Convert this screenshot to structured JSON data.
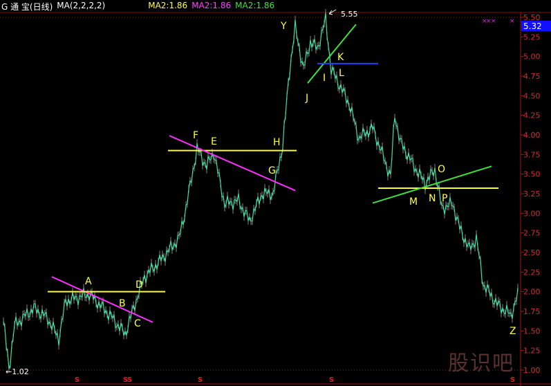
{
  "header": {
    "title": "G 通  宝(日线)",
    "indicator": "MA(2,2,2,2)",
    "ma_labels": [
      {
        "text": "MA2:1.86",
        "color": "#ffff40"
      },
      {
        "text": "MA2:1.86",
        "color": "#ff40ff"
      },
      {
        "text": "MA2:1.86",
        "color": "#40e040"
      }
    ]
  },
  "watermark": "股识吧",
  "chart_data": {
    "type": "line",
    "title": "",
    "ylim": [
      1.0,
      5.5
    ],
    "yticks": [
      "5.50",
      "5.25",
      "5.00",
      "4.75",
      "4.50",
      "4.25",
      "4.00",
      "3.75",
      "3.50",
      "3.25",
      "3.00",
      "2.75",
      "2.50",
      "2.25",
      "2.00",
      "1.75",
      "1.50",
      "1.25",
      "1.00"
    ],
    "current_price": "5.32",
    "high_label": "5.55",
    "low_label": "←1.02",
    "series": [
      {
        "color": "#40e0a0",
        "points": [
          [
            0,
            1.62
          ],
          [
            4,
            1.02
          ],
          [
            8,
            1.57
          ],
          [
            22,
            1.79
          ],
          [
            32,
            1.66
          ],
          [
            40,
            1.4
          ],
          [
            45,
            1.88
          ],
          [
            62,
            1.97
          ],
          [
            77,
            1.7
          ],
          [
            88,
            1.46
          ],
          [
            95,
            1.84
          ],
          [
            102,
            2.19
          ],
          [
            112,
            2.37
          ],
          [
            127,
            2.68
          ],
          [
            132,
            3.07
          ],
          [
            140,
            3.82
          ],
          [
            147,
            3.6
          ],
          [
            152,
            3.78
          ],
          [
            160,
            3.12
          ],
          [
            170,
            3.16
          ],
          [
            178,
            2.9
          ],
          [
            187,
            3.25
          ],
          [
            195,
            3.25
          ],
          [
            202,
            3.87
          ],
          [
            207,
            4.84
          ],
          [
            211,
            5.37
          ],
          [
            217,
            4.84
          ],
          [
            222,
            5.19
          ],
          [
            227,
            5.1
          ],
          [
            233,
            5.47
          ],
          [
            237,
            4.84
          ],
          [
            245,
            4.57
          ],
          [
            250,
            4.4
          ],
          [
            257,
            3.96
          ],
          [
            267,
            4.09
          ],
          [
            280,
            3.47
          ],
          [
            283,
            4.26
          ],
          [
            287,
            3.91
          ],
          [
            297,
            3.6
          ],
          [
            305,
            3.38
          ],
          [
            312,
            3.56
          ],
          [
            317,
            3.07
          ],
          [
            325,
            3.12
          ],
          [
            330,
            2.81
          ],
          [
            337,
            2.54
          ],
          [
            342,
            2.68
          ],
          [
            347,
            2.1
          ],
          [
            357,
            1.84
          ],
          [
            367,
            1.7
          ],
          [
            373,
            2.01
          ]
        ]
      }
    ],
    "trendlines": [
      {
        "color": "#ff30ff",
        "from": [
          35,
          2.19
        ],
        "to": [
          108,
          1.61
        ]
      },
      {
        "color": "#ffff30",
        "from": [
          32,
          2.0
        ],
        "to": [
          117,
          2.0
        ]
      },
      {
        "color": "#ffff30",
        "from": [
          119,
          3.8
        ],
        "to": [
          212,
          3.8
        ]
      },
      {
        "color": "#ff30ff",
        "from": [
          120,
          3.99
        ],
        "to": [
          211,
          3.29
        ]
      },
      {
        "color": "#40e040",
        "from": [
          220,
          4.66
        ],
        "to": [
          255,
          5.41
        ]
      },
      {
        "color": "#2040ff",
        "from": [
          227,
          4.91
        ],
        "to": [
          271,
          4.91
        ]
      },
      {
        "color": "#ffff30",
        "from": [
          271,
          3.32
        ],
        "to": [
          358,
          3.32
        ]
      },
      {
        "color": "#40e040",
        "from": [
          267,
          3.13
        ],
        "to": [
          353,
          3.6
        ]
      }
    ],
    "point_labels": [
      "A",
      "B",
      "C",
      "D",
      "F",
      "E",
      "G",
      "H",
      "Y",
      "I",
      "J",
      "K",
      "L",
      "O",
      "M",
      "N",
      "P",
      "Z"
    ],
    "markers": {
      "label": "S",
      "bars": [
        52,
        87,
        90,
        141,
        236,
        367
      ]
    }
  }
}
